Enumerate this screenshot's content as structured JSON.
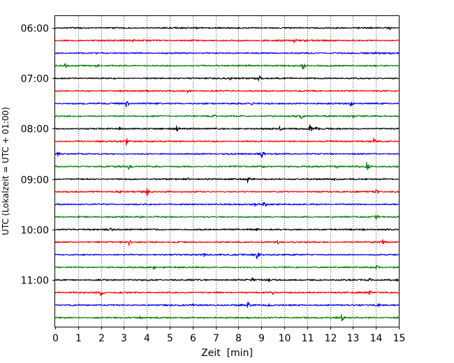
{
  "chart_data": {
    "type": "line",
    "title": "",
    "xlabel": "Zeit  [min]",
    "ylabel": "UTC (Lokalzeit = UTC + 01:00)",
    "xlim": [
      0,
      15
    ],
    "x_ticks": [
      0,
      1,
      2,
      3,
      4,
      5,
      6,
      7,
      8,
      9,
      10,
      11,
      12,
      13,
      14,
      15
    ],
    "x_tick_labels": [
      "0",
      "1",
      "2",
      "3",
      "4",
      "5",
      "6",
      "7",
      "8",
      "9",
      "10",
      "11",
      "12",
      "13",
      "14",
      "15"
    ],
    "y_tick_labels": [
      "06:00",
      "07:00",
      "08:00",
      "09:00",
      "10:00",
      "11:00"
    ],
    "y_tick_trace_index": [
      0,
      4,
      8,
      12,
      16,
      20
    ],
    "grid": {
      "x": true,
      "y": false,
      "style": "dotted"
    },
    "trace_interval_minutes": 15,
    "start_time": "06:00",
    "colors": [
      "#000000",
      "#ff0000",
      "#0000ff",
      "#008000"
    ],
    "series": [
      {
        "start": "06:00",
        "color": "#000000",
        "events": [
          {
            "t": 6.2,
            "amp": 0.3
          },
          {
            "t": 14.6,
            "amp": 0.35
          }
        ]
      },
      {
        "start": "06:15",
        "color": "#ff0000",
        "events": [
          {
            "t": 3.4,
            "amp": 0.45
          },
          {
            "t": 10.4,
            "amp": 0.7
          },
          {
            "t": 10.9,
            "amp": 0.3
          }
        ]
      },
      {
        "start": "06:30",
        "color": "#0000ff",
        "events": [
          {
            "t": 13.9,
            "amp": 0.45
          },
          {
            "t": 14.6,
            "amp": 0.3
          }
        ]
      },
      {
        "start": "06:45",
        "color": "#008000",
        "events": [
          {
            "t": 0.4,
            "amp": 0.6
          },
          {
            "t": 1.8,
            "amp": 0.4
          },
          {
            "t": 8.4,
            "amp": 0.3
          },
          {
            "t": 10.8,
            "amp": 0.7
          }
        ]
      },
      {
        "start": "07:00",
        "color": "#000000",
        "events": [
          {
            "t": 7.6,
            "amp": 0.35
          },
          {
            "t": 8.9,
            "amp": 0.8
          }
        ]
      },
      {
        "start": "07:15",
        "color": "#ff0000",
        "events": [
          {
            "t": 4.0,
            "amp": 0.3
          },
          {
            "t": 5.8,
            "amp": 0.55
          }
        ]
      },
      {
        "start": "07:30",
        "color": "#0000ff",
        "events": [
          {
            "t": 3.1,
            "amp": 0.75
          },
          {
            "t": 8.6,
            "amp": 0.35
          },
          {
            "t": 12.9,
            "amp": 0.6
          }
        ]
      },
      {
        "start": "07:45",
        "color": "#008000",
        "events": [
          {
            "t": 6.9,
            "amp": 0.4
          },
          {
            "t": 10.7,
            "amp": 0.7
          },
          {
            "t": 13.0,
            "amp": 0.35
          }
        ]
      },
      {
        "start": "08:00",
        "color": "#000000",
        "events": [
          {
            "t": 2.8,
            "amp": 0.45
          },
          {
            "t": 5.3,
            "amp": 0.55
          },
          {
            "t": 9.8,
            "amp": 0.45
          },
          {
            "t": 11.1,
            "amp": 0.8
          },
          {
            "t": 11.4,
            "amp": 0.55
          }
        ]
      },
      {
        "start": "08:15",
        "color": "#ff0000",
        "events": [
          {
            "t": 3.1,
            "amp": 0.75
          },
          {
            "t": 13.9,
            "amp": 0.65
          }
        ]
      },
      {
        "start": "08:30",
        "color": "#0000ff",
        "events": [
          {
            "t": 0.1,
            "amp": 0.5
          },
          {
            "t": 9.0,
            "amp": 0.8
          }
        ]
      },
      {
        "start": "08:45",
        "color": "#008000",
        "events": [
          {
            "t": 3.2,
            "amp": 0.65
          },
          {
            "t": 9.1,
            "amp": 0.4
          },
          {
            "t": 12.3,
            "amp": 0.3
          },
          {
            "t": 13.6,
            "amp": 0.8
          }
        ]
      },
      {
        "start": "09:00",
        "color": "#000000",
        "events": [
          {
            "t": 5.8,
            "amp": 0.35
          },
          {
            "t": 8.4,
            "amp": 0.7
          },
          {
            "t": 12.2,
            "amp": 0.4
          }
        ]
      },
      {
        "start": "09:15",
        "color": "#ff0000",
        "events": [
          {
            "t": 2.8,
            "amp": 0.35
          },
          {
            "t": 4.0,
            "amp": 0.8
          },
          {
            "t": 14.0,
            "amp": 0.55
          }
        ]
      },
      {
        "start": "09:30",
        "color": "#0000ff",
        "events": [
          {
            "t": 8.7,
            "amp": 0.45
          },
          {
            "t": 9.1,
            "amp": 0.75
          }
        ]
      },
      {
        "start": "09:45",
        "color": "#008000",
        "events": [
          {
            "t": 3.7,
            "amp": 0.45
          },
          {
            "t": 14.0,
            "amp": 0.7
          }
        ]
      },
      {
        "start": "10:00",
        "color": "#000000",
        "events": [
          {
            "t": 2.4,
            "amp": 0.45
          },
          {
            "t": 8.8,
            "amp": 0.4
          },
          {
            "t": 13.4,
            "amp": 0.4
          }
        ]
      },
      {
        "start": "10:15",
        "color": "#ff0000",
        "events": [
          {
            "t": 3.2,
            "amp": 0.7
          },
          {
            "t": 9.7,
            "amp": 0.35
          },
          {
            "t": 14.3,
            "amp": 0.6
          }
        ]
      },
      {
        "start": "10:30",
        "color": "#0000ff",
        "events": [
          {
            "t": 6.5,
            "amp": 0.35
          },
          {
            "t": 8.8,
            "amp": 0.75
          }
        ]
      },
      {
        "start": "10:45",
        "color": "#008000",
        "events": [
          {
            "t": 4.3,
            "amp": 0.45
          },
          {
            "t": 14.0,
            "amp": 0.55
          }
        ]
      },
      {
        "start": "11:00",
        "color": "#000000",
        "events": [
          {
            "t": 6.5,
            "amp": 0.3
          },
          {
            "t": 8.6,
            "amp": 0.55
          },
          {
            "t": 9.3,
            "amp": 0.4
          },
          {
            "t": 13.7,
            "amp": 0.5
          },
          {
            "t": 14.9,
            "amp": 0.3
          }
        ]
      },
      {
        "start": "11:15",
        "color": "#ff0000",
        "events": [
          {
            "t": 2.0,
            "amp": 0.65
          },
          {
            "t": 9.5,
            "amp": 0.35
          },
          {
            "t": 13.7,
            "amp": 0.6
          }
        ]
      },
      {
        "start": "11:30",
        "color": "#0000ff",
        "events": [
          {
            "t": 6.0,
            "amp": 0.3
          },
          {
            "t": 8.4,
            "amp": 0.7
          },
          {
            "t": 9.3,
            "amp": 0.4
          },
          {
            "t": 14.1,
            "amp": 0.35
          }
        ]
      },
      {
        "start": "11:45",
        "color": "#008000",
        "events": [
          {
            "t": 3.7,
            "amp": 0.35
          },
          {
            "t": 9.8,
            "amp": 0.3
          },
          {
            "t": 12.5,
            "amp": 0.75
          }
        ]
      }
    ]
  }
}
